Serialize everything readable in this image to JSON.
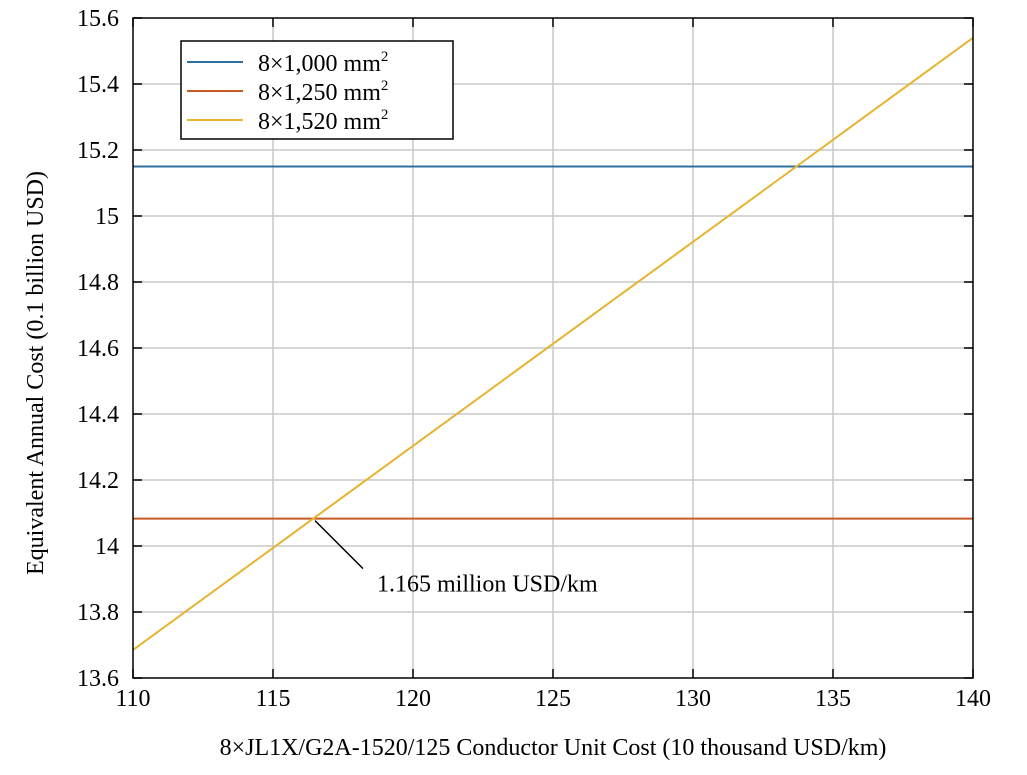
{
  "chart_data": {
    "type": "line",
    "xlabel": "8×JL1X/G2A-1520/125 Conductor Unit Cost (10 thousand USD/km)",
    "ylabel": "Equivalent Annual Cost (0.1 billion USD)",
    "xlim": [
      110,
      140
    ],
    "ylim": [
      13.6,
      15.6
    ],
    "x_ticks": [
      110,
      115,
      120,
      125,
      130,
      135,
      140
    ],
    "y_ticks": [
      13.6,
      13.8,
      14,
      14.2,
      14.4,
      14.6,
      14.8,
      15,
      15.2,
      15.4,
      15.6
    ],
    "x_tick_labels": [
      "110",
      "115",
      "120",
      "125",
      "130",
      "135",
      "140"
    ],
    "y_tick_labels": [
      "13.6",
      "13.8",
      "14",
      "14.2",
      "14.4",
      "14.6",
      "14.8",
      "15",
      "15.2",
      "15.4",
      "15.6"
    ],
    "grid": true,
    "legend_position": "top-left",
    "series": [
      {
        "name": "8×1,000 mm",
        "superscript": "2",
        "color": "#2e6fa0",
        "x": [
          110,
          140
        ],
        "y": [
          15.15,
          15.15
        ]
      },
      {
        "name": "8×1,250 mm",
        "superscript": "2",
        "color": "#c85a24",
        "x": [
          110,
          140
        ],
        "y": [
          14.083,
          14.083
        ]
      },
      {
        "name": "8×1,520 mm",
        "superscript": "2",
        "color": "#e6b430",
        "x": [
          110,
          140
        ],
        "y": [
          13.685,
          15.54
        ]
      }
    ],
    "annotations": [
      {
        "text": "1.165 million USD/km",
        "point": [
          116.5,
          14.083
        ]
      }
    ]
  }
}
